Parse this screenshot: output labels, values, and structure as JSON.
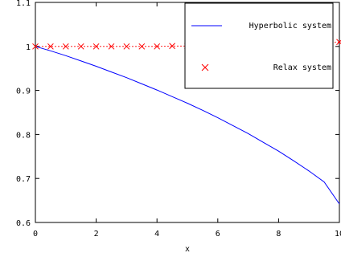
{
  "chart_data": {
    "type": "line",
    "title": "",
    "xlabel": "x",
    "ylabel": "",
    "xlim": [
      0,
      10
    ],
    "ylim": [
      0.6,
      1.1
    ],
    "xticks": [
      0,
      2,
      4,
      6,
      8,
      10
    ],
    "yticks": [
      0.6,
      0.7,
      0.8,
      0.9,
      1,
      1.1
    ],
    "grid": false,
    "legend_position": "top-right",
    "series": [
      {
        "name": "Hyperbolic system",
        "style": "line",
        "color": "#0000ff",
        "x": [
          0,
          0.5,
          1,
          1.5,
          2,
          2.5,
          3,
          3.5,
          4,
          4.5,
          5,
          5.5,
          6,
          6.5,
          7,
          7.5,
          8,
          8.5,
          9,
          9.5,
          10
        ],
        "values": [
          1.0,
          0.99,
          0.979,
          0.967,
          0.955,
          0.942,
          0.929,
          0.915,
          0.901,
          0.886,
          0.871,
          0.855,
          0.838,
          0.82,
          0.802,
          0.782,
          0.762,
          0.74,
          0.717,
          0.692,
          0.642
        ]
      },
      {
        "name": "Relax system",
        "style": "markers",
        "marker": "x",
        "color": "#ff0000",
        "x": [
          0,
          0.5,
          1,
          1.5,
          2,
          2.5,
          3,
          3.5,
          4,
          4.5,
          5,
          5.5,
          6,
          6.5,
          7,
          7.5,
          8,
          8.5,
          9,
          9.5,
          10
        ],
        "values": [
          1.0,
          1.0,
          1.0,
          1.0,
          1.0,
          1.0,
          1.0,
          1.0,
          1.0,
          1.001,
          1.001,
          1.001,
          1.002,
          1.002,
          1.003,
          1.004,
          1.005,
          1.006,
          1.007,
          1.008,
          1.01
        ]
      }
    ]
  }
}
